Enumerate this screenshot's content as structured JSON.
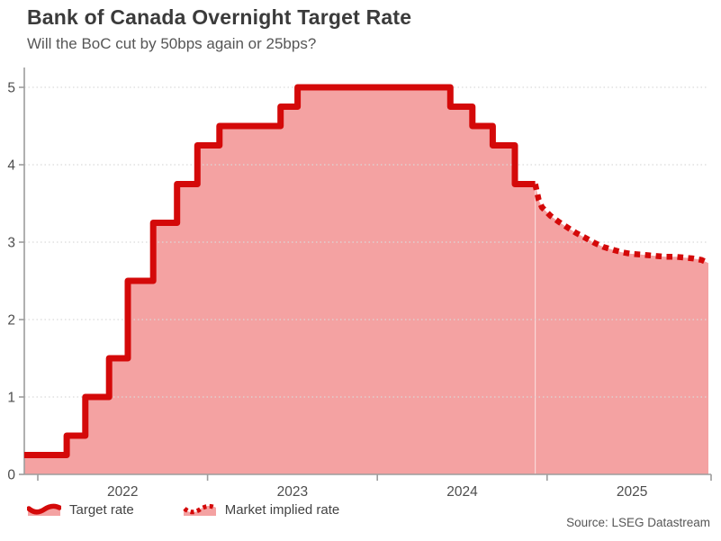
{
  "header": {
    "title": "Bank of Canada Overnight Target Rate",
    "subtitle": "Will the BoC cut by 50bps again or 25bps?"
  },
  "legend": {
    "items": [
      {
        "label": "Target rate",
        "style": "solid"
      },
      {
        "label": "Market implied rate",
        "style": "dotted"
      }
    ]
  },
  "footer": {
    "source": "Source: LSEG Datastream"
  },
  "chart_data": {
    "type": "area",
    "title": "Bank of Canada Overnight Target Rate",
    "subtitle": "Will the BoC cut by 50bps again or 25bps?",
    "xlabel": "",
    "ylabel": "",
    "x_axis": {
      "tick_years": [
        2022,
        2023,
        2024,
        2025
      ],
      "range": [
        2021.92,
        2025.95
      ],
      "labels_centered_mid_year": true
    },
    "y_axis": {
      "ticks": [
        0,
        1,
        2,
        3,
        4,
        5
      ],
      "range": [
        0,
        5.25
      ],
      "grid": "dotted"
    },
    "series": [
      {
        "name": "Target rate",
        "style": "step-solid",
        "points": [
          [
            2021.92,
            0.25
          ],
          [
            2022.17,
            0.5
          ],
          [
            2022.28,
            1.0
          ],
          [
            2022.42,
            1.5
          ],
          [
            2022.53,
            2.5
          ],
          [
            2022.68,
            3.25
          ],
          [
            2022.82,
            3.75
          ],
          [
            2022.94,
            4.25
          ],
          [
            2023.07,
            4.5
          ],
          [
            2023.43,
            4.75
          ],
          [
            2023.53,
            5.0
          ],
          [
            2024.43,
            4.75
          ],
          [
            2024.56,
            4.5
          ],
          [
            2024.68,
            4.25
          ],
          [
            2024.81,
            3.75
          ]
        ],
        "end_x": 2024.93
      },
      {
        "name": "Market implied rate",
        "style": "dotted",
        "points": [
          [
            2024.93,
            3.75
          ],
          [
            2024.95,
            3.55
          ],
          [
            2024.97,
            3.45
          ],
          [
            2025.02,
            3.34
          ],
          [
            2025.07,
            3.26
          ],
          [
            2025.12,
            3.19
          ],
          [
            2025.17,
            3.12
          ],
          [
            2025.23,
            3.05
          ],
          [
            2025.28,
            2.99
          ],
          [
            2025.33,
            2.94
          ],
          [
            2025.39,
            2.9
          ],
          [
            2025.44,
            2.87
          ],
          [
            2025.49,
            2.85
          ],
          [
            2025.55,
            2.84
          ],
          [
            2025.6,
            2.83
          ],
          [
            2025.65,
            2.82
          ],
          [
            2025.7,
            2.81
          ],
          [
            2025.76,
            2.81
          ],
          [
            2025.81,
            2.8
          ],
          [
            2025.86,
            2.79
          ],
          [
            2025.91,
            2.77
          ],
          [
            2025.95,
            2.73
          ]
        ]
      }
    ],
    "legend_position": "bottom-left",
    "colors": {
      "line": "#d40909",
      "fill": "#f4a2a2",
      "grid": "#d9d9d9",
      "axis": "#9d9d9d",
      "tick_text": "#4d4d4d"
    }
  }
}
